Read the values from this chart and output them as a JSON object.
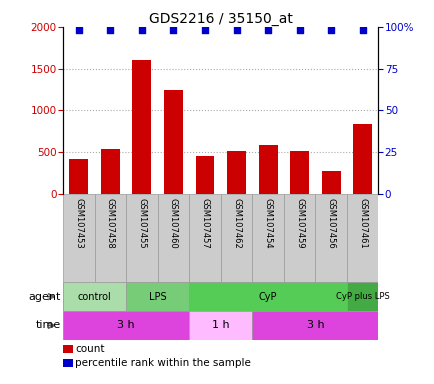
{
  "title": "GDS2216 / 35150_at",
  "samples": [
    "GSM107453",
    "GSM107458",
    "GSM107455",
    "GSM107460",
    "GSM107457",
    "GSM107462",
    "GSM107454",
    "GSM107459",
    "GSM107456",
    "GSM107461"
  ],
  "counts": [
    420,
    540,
    1600,
    1250,
    460,
    510,
    580,
    510,
    280,
    840
  ],
  "percentile_ranks": [
    98,
    98,
    98,
    98,
    98,
    98,
    98,
    98,
    98,
    98
  ],
  "bar_color": "#cc0000",
  "dot_color": "#0000cc",
  "ylim_left": [
    0,
    2000
  ],
  "ylim_right": [
    0,
    100
  ],
  "yticks_left": [
    0,
    500,
    1000,
    1500,
    2000
  ],
  "yticks_right": [
    0,
    25,
    50,
    75,
    100
  ],
  "ytick_right_labels": [
    "0",
    "25",
    "50",
    "75",
    "100%"
  ],
  "agent_groups": [
    {
      "label": "control",
      "start": 0,
      "end": 2,
      "color": "#aaddaa"
    },
    {
      "label": "LPS",
      "start": 2,
      "end": 4,
      "color": "#77cc77"
    },
    {
      "label": "CyP",
      "start": 4,
      "end": 9,
      "color": "#55cc55"
    },
    {
      "label": "CyP plus LPS",
      "start": 9,
      "end": 10,
      "color": "#44aa44"
    }
  ],
  "time_groups": [
    {
      "label": "3 h",
      "start": 0,
      "end": 4,
      "color": "#dd44dd"
    },
    {
      "label": "1 h",
      "start": 4,
      "end": 6,
      "color": "#ffbbff"
    },
    {
      "label": "3 h",
      "start": 6,
      "end": 10,
      "color": "#dd44dd"
    }
  ],
  "label_bg_color": "#cccccc",
  "label_border_color": "#999999",
  "agent_label": "agent",
  "time_label": "time",
  "left_axis_color": "#cc0000",
  "right_axis_color": "#0000cc",
  "dotted_line_color": "#aaaaaa",
  "legend_count_label": "count",
  "legend_pct_label": "percentile rank within the sample"
}
